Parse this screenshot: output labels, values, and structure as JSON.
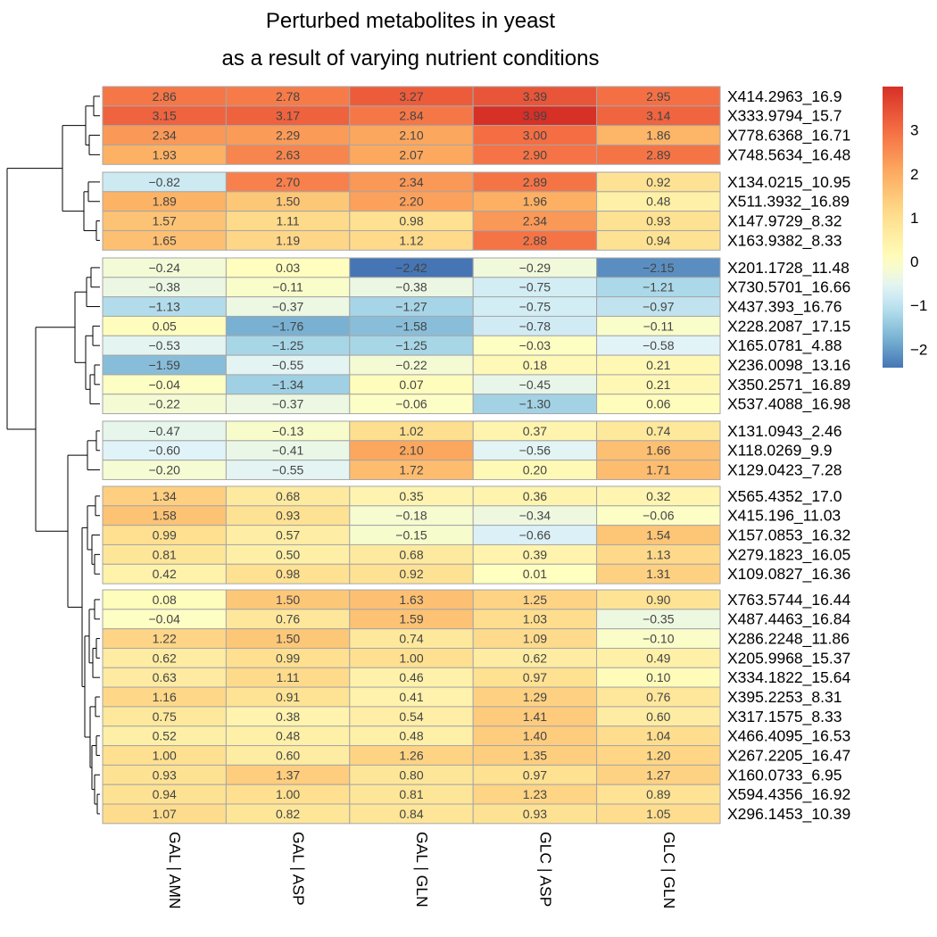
{
  "chart_data": {
    "type": "heatmap",
    "title": [
      "Perturbed metabolites in yeast",
      "as a result of varying nutrient conditions"
    ],
    "columns": [
      "GAL | AMN",
      "GAL | ASP",
      "GAL | GLN",
      "GLC | ASP",
      "GLC | GLN"
    ],
    "rows": [
      "X414.2963_16.9",
      "X333.9794_15.7",
      "X778.6368_16.71",
      "X748.5634_16.48",
      "X134.0215_10.95",
      "X511.3932_16.89",
      "X147.9729_8.32",
      "X163.9382_8.33",
      "X201.1728_11.48",
      "X730.5701_16.66",
      "X437.393_16.76",
      "X228.2087_17.15",
      "X165.0781_4.88",
      "X236.0098_13.16",
      "X350.2571_16.89",
      "X537.4088_16.98",
      "X131.0943_2.46",
      "X118.0269_9.9",
      "X129.0423_7.28",
      "X565.4352_17.0",
      "X415.196_11.03",
      "X157.0853_16.32",
      "X279.1823_16.05",
      "X109.0827_16.36",
      "X763.5744_16.44",
      "X487.4463_16.84",
      "X286.2248_11.86",
      "X205.9968_15.37",
      "X334.1822_15.64",
      "X395.2253_8.31",
      "X317.1575_8.33",
      "X466.4095_16.53",
      "X267.2205_16.47",
      "X160.0733_6.95",
      "X594.4356_16.92",
      "X296.1453_10.39"
    ],
    "values": [
      [
        2.86,
        2.78,
        3.27,
        3.39,
        2.95
      ],
      [
        3.15,
        3.17,
        2.84,
        3.99,
        3.14
      ],
      [
        2.34,
        2.29,
        2.1,
        3.0,
        1.86
      ],
      [
        1.93,
        2.63,
        2.07,
        2.9,
        2.89
      ],
      [
        -0.82,
        2.7,
        2.34,
        2.89,
        0.92
      ],
      [
        1.89,
        1.5,
        2.2,
        1.96,
        0.48
      ],
      [
        1.57,
        1.11,
        0.98,
        2.34,
        0.93
      ],
      [
        1.65,
        1.19,
        1.12,
        2.88,
        0.94
      ],
      [
        -0.24,
        0.03,
        -2.42,
        -0.29,
        -2.15
      ],
      [
        -0.38,
        -0.11,
        -0.38,
        -0.75,
        -1.21
      ],
      [
        -1.13,
        -0.37,
        -1.27,
        -0.75,
        -0.97
      ],
      [
        0.05,
        -1.76,
        -1.58,
        -0.78,
        -0.11
      ],
      [
        -0.53,
        -1.25,
        -1.25,
        -0.03,
        -0.58
      ],
      [
        -1.59,
        -0.55,
        -0.22,
        0.18,
        0.21
      ],
      [
        -0.04,
        -1.34,
        0.07,
        -0.45,
        0.21
      ],
      [
        -0.22,
        -0.37,
        -0.06,
        -1.3,
        0.06
      ],
      [
        -0.47,
        -0.13,
        1.02,
        0.37,
        0.74
      ],
      [
        -0.6,
        -0.41,
        2.1,
        -0.56,
        1.66
      ],
      [
        -0.2,
        -0.55,
        1.72,
        0.2,
        1.71
      ],
      [
        1.34,
        0.68,
        0.35,
        0.36,
        0.32
      ],
      [
        1.58,
        0.93,
        -0.18,
        -0.34,
        -0.06
      ],
      [
        0.99,
        0.57,
        -0.15,
        -0.66,
        1.54
      ],
      [
        0.81,
        0.5,
        0.68,
        0.39,
        1.13
      ],
      [
        0.42,
        0.98,
        0.92,
        0.01,
        1.31
      ],
      [
        0.08,
        1.5,
        1.63,
        1.25,
        0.9
      ],
      [
        -0.04,
        0.76,
        1.59,
        1.03,
        -0.35
      ],
      [
        1.22,
        1.5,
        0.74,
        1.09,
        -0.1
      ],
      [
        0.62,
        0.99,
        1.0,
        0.62,
        0.49
      ],
      [
        0.63,
        1.11,
        0.46,
        0.97,
        0.1
      ],
      [
        1.16,
        0.91,
        0.41,
        1.29,
        0.76
      ],
      [
        0.75,
        0.38,
        0.54,
        1.41,
        0.6
      ],
      [
        0.52,
        0.48,
        0.48,
        1.4,
        1.04
      ],
      [
        1.0,
        0.6,
        1.26,
        1.35,
        1.2
      ],
      [
        0.93,
        1.37,
        0.8,
        0.97,
        1.27
      ],
      [
        0.94,
        1.0,
        0.81,
        1.23,
        0.89
      ],
      [
        1.07,
        0.82,
        0.84,
        0.93,
        1.05
      ]
    ],
    "row_groups": [
      4,
      4,
      8,
      3,
      5,
      12
    ],
    "color_scale": {
      "low": -2.42,
      "mid": 0,
      "high": 3.99,
      "colors_low_to_high": [
        "#4575b4",
        "#74add1",
        "#abd9e9",
        "#e0f3f8",
        "#ffffbf",
        "#fee090",
        "#fdae61",
        "#f46d43",
        "#d73027"
      ]
    },
    "legend": {
      "placement": "right",
      "ticks": [
        3,
        2,
        1,
        0,
        -1,
        -2
      ],
      "tick_labels": [
        "3",
        "2",
        "1",
        "0",
        "−1",
        "−2"
      ]
    }
  }
}
